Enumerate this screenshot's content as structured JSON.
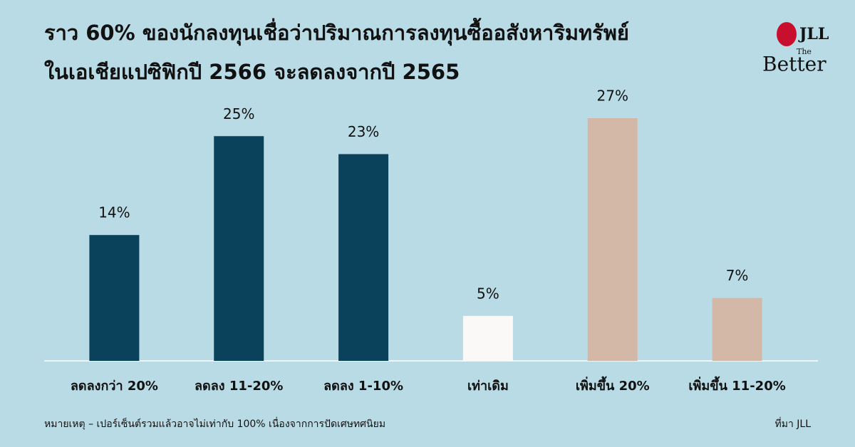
{
  "chart_data": {
    "type": "bar",
    "title": [
      "ราว 60% ของนักลงทุนเชื่อว่าปริมาณการลงทุนซื้ออสังหาริมทรัพย์",
      "ในเอเชียแปซิฟิกปี 2566 จะลดลงจากปี 2565"
    ],
    "categories": [
      "ลดลงกว่า 20%",
      "ลดลง 11-20%",
      "ลดลง 1-10%",
      "เท่าเดิม",
      "เพิ่มขึ้น 20%",
      "เพิ่มขึ้น 11-20%"
    ],
    "values": [
      14,
      25,
      23,
      5,
      27,
      7
    ],
    "value_labels": [
      "14%",
      "25%",
      "23%",
      "5%",
      "27%",
      "7%"
    ],
    "colors": [
      "#0b425b",
      "#0b425b",
      "#0b425b",
      "#fbf8f8",
      "#d3b8a8",
      "#d3b8a8"
    ],
    "note": "หมายเหตุ – เปอร์เซ็นต์รวมแล้วอาจไม่เท่ากับ 100% เนื่องจากการปัดเศษทศนิยม",
    "source": "ที่มา JLL"
  },
  "logo": {
    "brand": "JLL",
    "tagline_top": "The",
    "tagline": "Better"
  }
}
